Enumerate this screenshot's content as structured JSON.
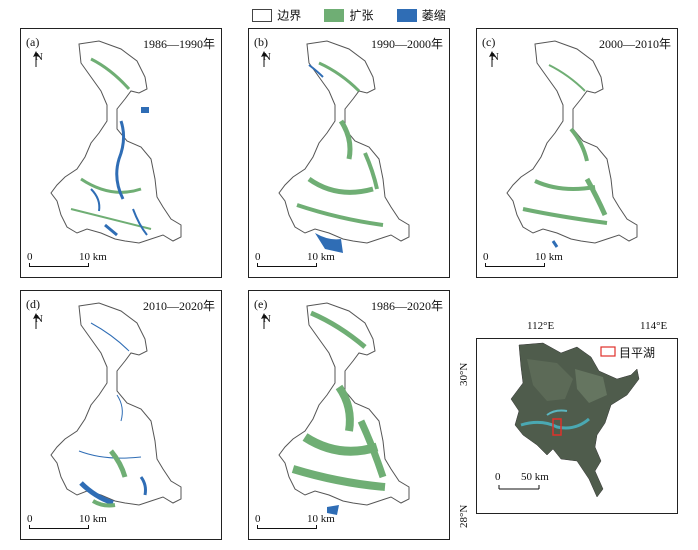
{
  "legend": {
    "items": [
      {
        "label": "边界",
        "color": "#ffffff"
      },
      {
        "label": "扩张",
        "color": "#6fae74"
      },
      {
        "label": "萎缩",
        "color": "#2f6db5"
      }
    ]
  },
  "panels": [
    {
      "label": "(a)",
      "period": "1986—1990年"
    },
    {
      "label": "(b)",
      "period": "1990—2000年"
    },
    {
      "label": "(c)",
      "period": "2000—2010年"
    },
    {
      "label": "(d)",
      "period": "2010—2020年"
    },
    {
      "label": "(e)",
      "period": "1986—2020年"
    }
  ],
  "map_common": {
    "north_label": "N",
    "scale_start": "0",
    "scale_end": "10 km"
  },
  "locator": {
    "lon_left": "112°E",
    "lon_right": "114°E",
    "lat_top": "30°N",
    "lat_bottom": "28°N",
    "legend_label": "目平湖",
    "scale_start": "0",
    "scale_end": "50 km"
  },
  "colors": {
    "expand": "#6fae74",
    "shrink": "#2f6db5",
    "boundary": "#555555",
    "highlight": "#e0302a"
  }
}
